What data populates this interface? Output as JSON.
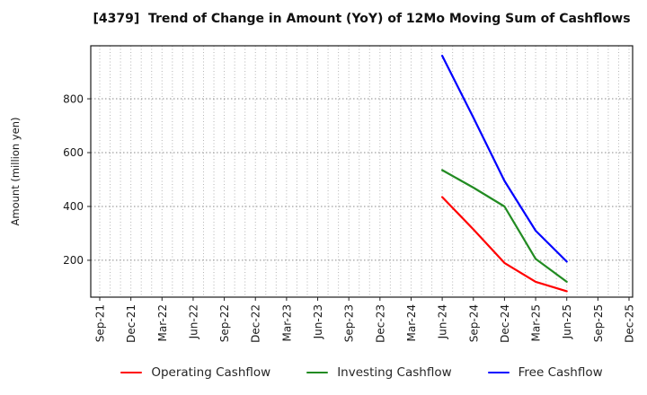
{
  "title": "[4379]  Trend of Change in Amount (YoY) of 12Mo Moving Sum of Cashflows",
  "chart_data": {
    "type": "line",
    "title": "[4379]  Trend of Change in Amount (YoY) of 12Mo Moving Sum of Cashflows",
    "xlabel": "",
    "ylabel": "Amount (million yen)",
    "x_categories": [
      "Sep-21",
      "Dec-21",
      "Mar-22",
      "Jun-22",
      "Sep-22",
      "Dec-22",
      "Mar-23",
      "Jun-23",
      "Sep-23",
      "Dec-23",
      "Mar-24",
      "Jun-24",
      "Sep-24",
      "Dec-24",
      "Mar-25",
      "Jun-25",
      "Sep-25",
      "Dec-25"
    ],
    "data_x": [
      "Jun-24",
      "Sep-24",
      "Dec-24",
      "Mar-25",
      "Jun-25"
    ],
    "series": [
      {
        "name": "Operating Cashflow",
        "color": "#ff0000",
        "values": [
          435,
          315,
          190,
          120,
          85
        ]
      },
      {
        "name": "Investing Cashflow",
        "color": "#228b22",
        "values": [
          535,
          470,
          400,
          205,
          120
        ]
      },
      {
        "name": "Free Cashflow",
        "color": "#0000ff",
        "values": [
          960,
          730,
          495,
          310,
          195
        ]
      }
    ],
    "yticks": [
      200,
      400,
      600,
      800
    ],
    "ylim": [
      63,
      997
    ],
    "grid": true,
    "minor_vertical_grid": "monthly",
    "legend_position": "bottom",
    "units": "million yen"
  }
}
